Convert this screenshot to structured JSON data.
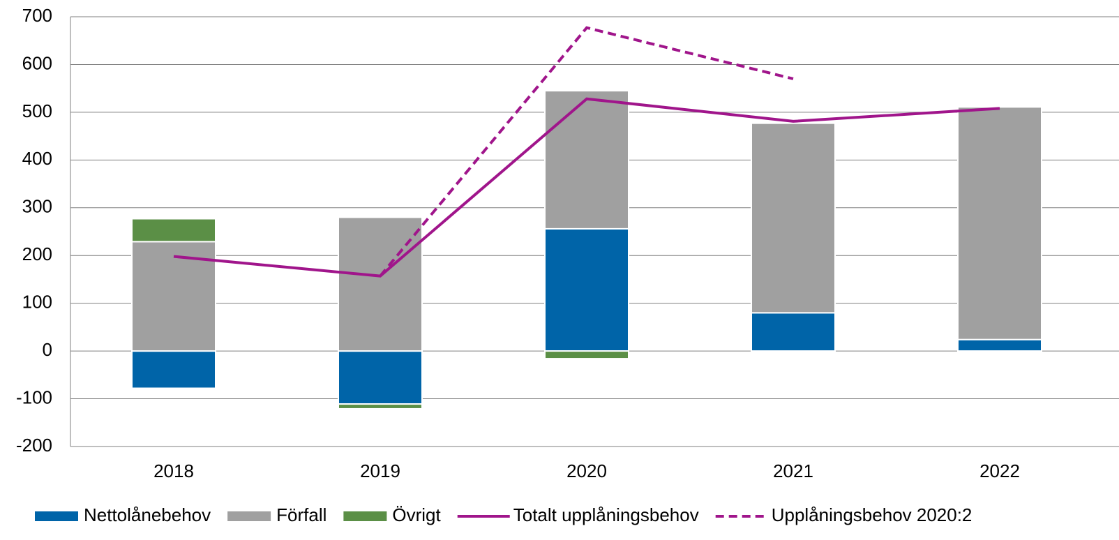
{
  "chart_data": {
    "type": "bar",
    "categories": [
      "2018",
      "2019",
      "2020",
      "2021",
      "2022"
    ],
    "series": [
      {
        "name": "Nettolånebehov",
        "type": "bar",
        "color": "#0064a8",
        "values": [
          -78,
          -111,
          256,
          80,
          24
        ]
      },
      {
        "name": "Förfall",
        "type": "bar",
        "color": "#a0a0a0",
        "values": [
          229,
          280,
          289,
          397,
          487
        ]
      },
      {
        "name": "Övrigt",
        "type": "bar",
        "color": "#5b8f46",
        "values": [
          48,
          -10,
          -16,
          null,
          null
        ]
      },
      {
        "name": "Totalt upplåningsbehov",
        "type": "line",
        "color": "#a0158b",
        "values": [
          198,
          157,
          528,
          481,
          508
        ]
      },
      {
        "name": "Upplåningsbehov 2020:2",
        "type": "line",
        "dashed": true,
        "color": "#a0158b",
        "values": [
          null,
          157,
          677,
          570,
          null
        ]
      }
    ],
    "ylim": [
      -200,
      700
    ],
    "yticks": [
      -200,
      -100,
      0,
      100,
      200,
      300,
      400,
      500,
      600,
      700
    ],
    "grid": true,
    "legend": "bottom"
  }
}
